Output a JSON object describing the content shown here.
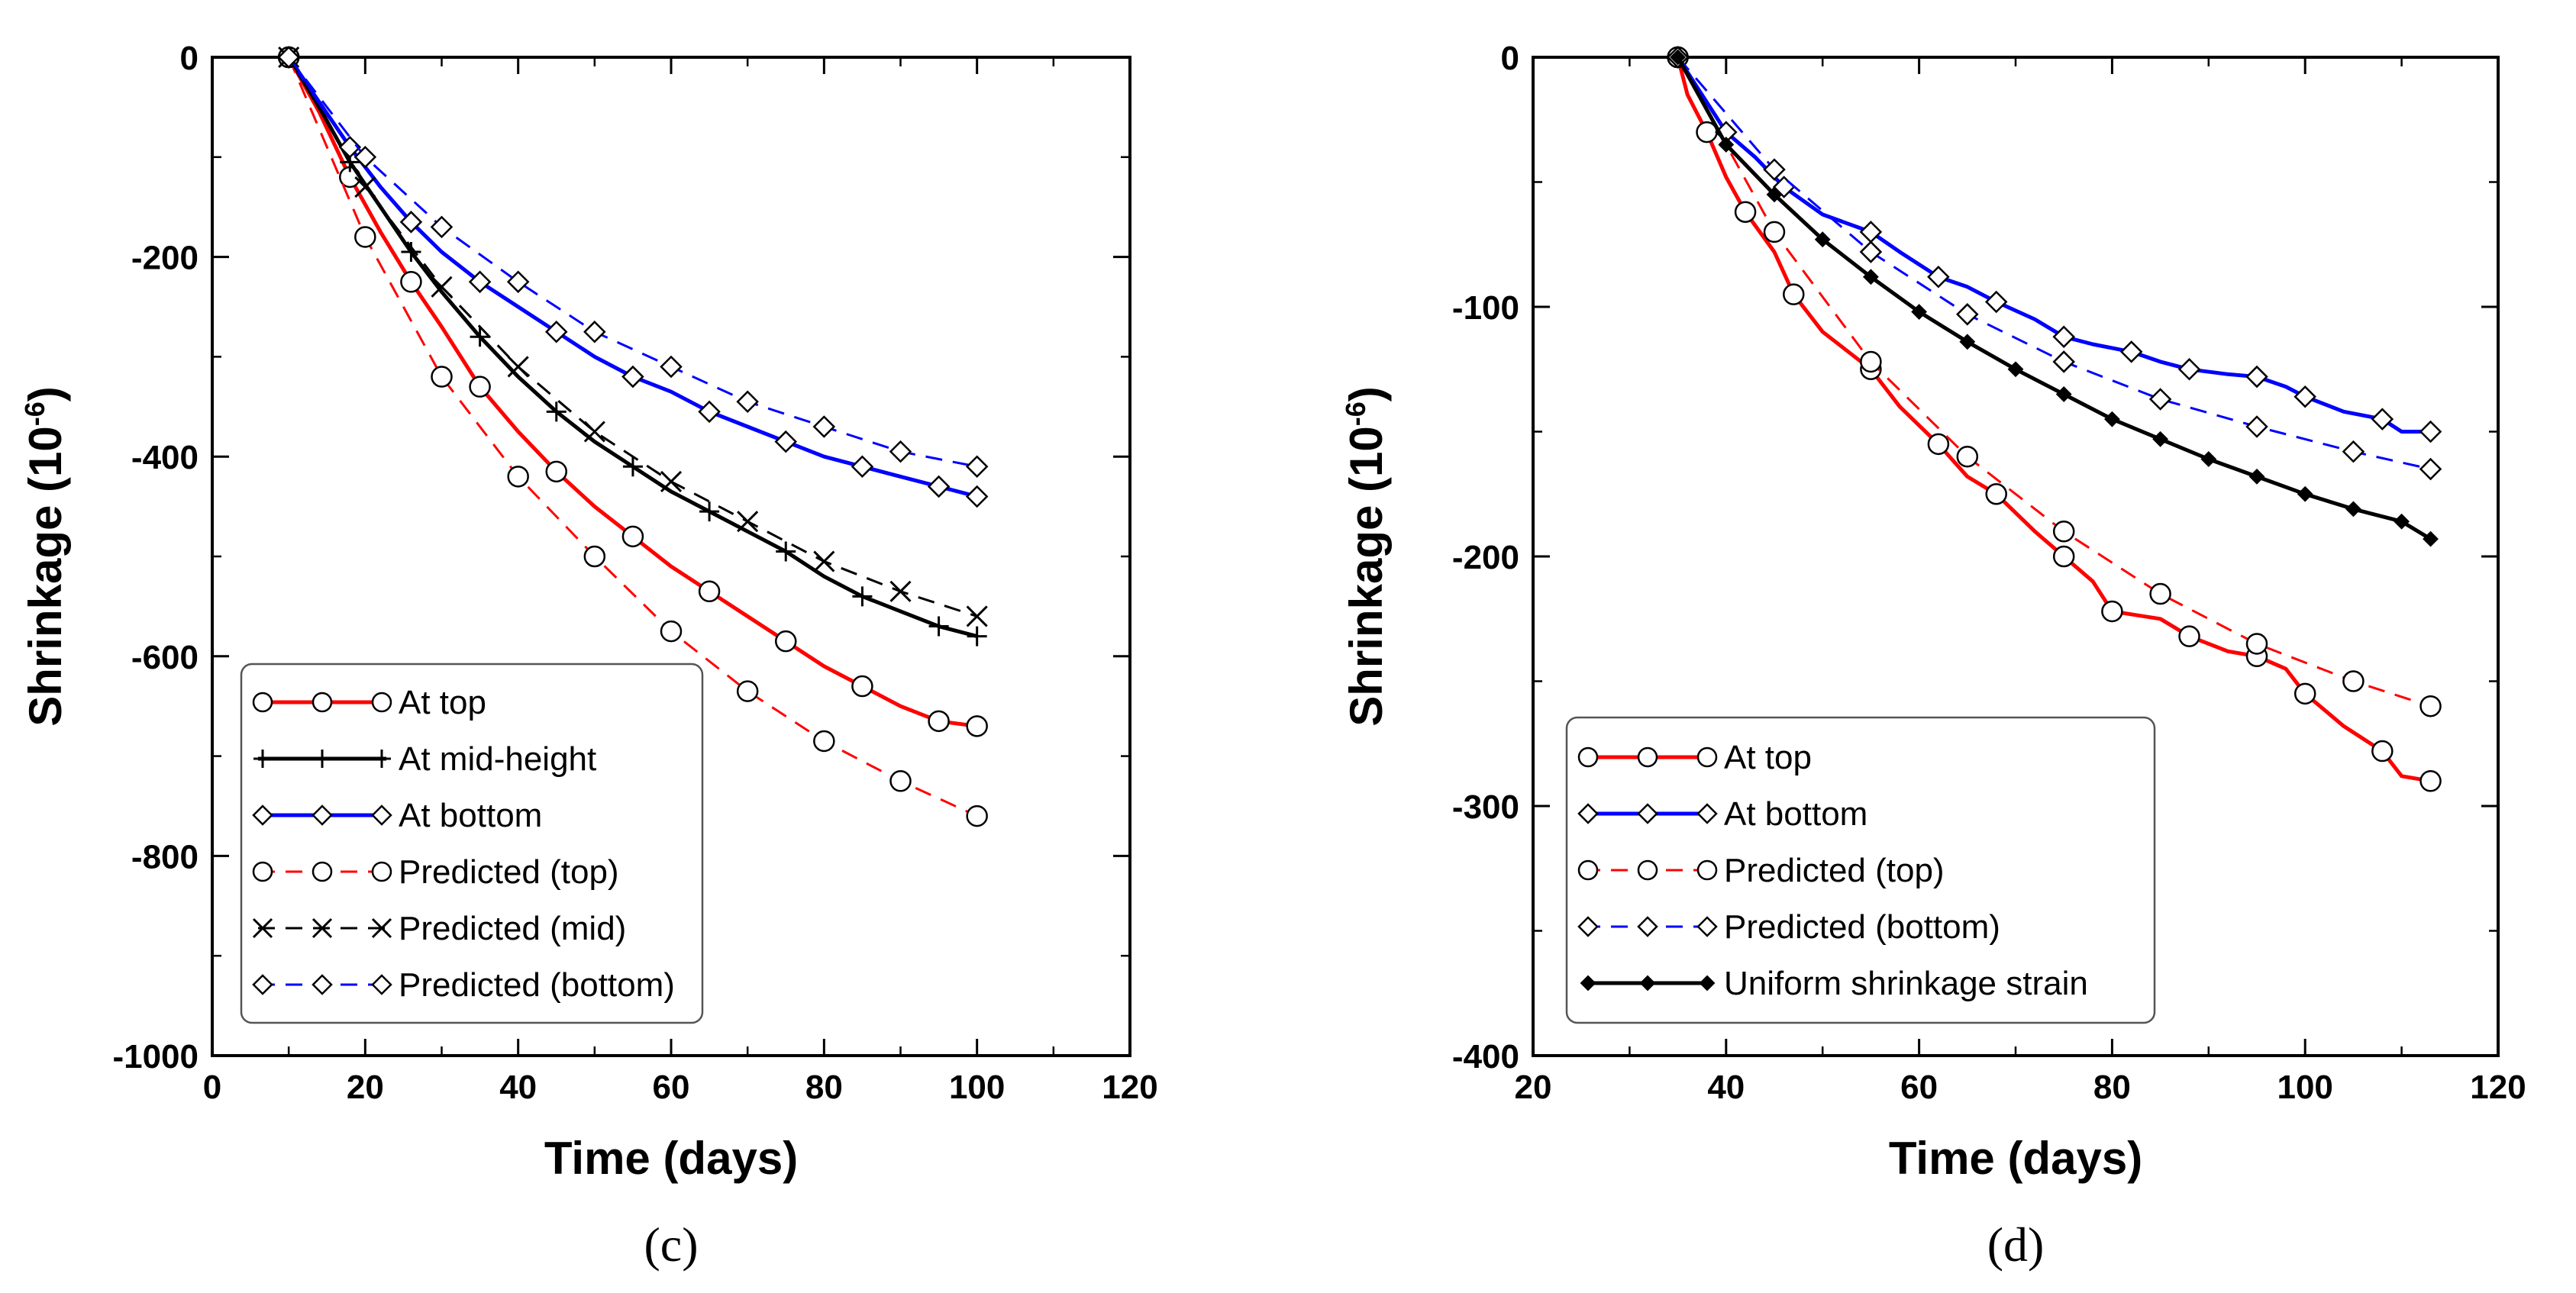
{
  "chart_data": [
    {
      "type": "line",
      "panel_label": "(c)",
      "xlabel": "Time (days)",
      "ylabel": "Shrinkage (10",
      "ylabel_sup": "-6",
      "ylabel_close": ")",
      "xlim": [
        0,
        120
      ],
      "ylim": [
        -1000,
        0
      ],
      "xticks": [
        0,
        20,
        40,
        60,
        80,
        100,
        120
      ],
      "yticks": [
        0,
        -200,
        -400,
        -600,
        -800,
        -1000
      ],
      "legend_position": "bottom-left",
      "series": [
        {
          "name": "At top",
          "color": "#ff0000",
          "style": "solid",
          "marker": "circle",
          "x": [
            10,
            14,
            18,
            22,
            26,
            30,
            35,
            40,
            45,
            50,
            55,
            60,
            65,
            70,
            75,
            80,
            85,
            90,
            95,
            100
          ],
          "values": [
            0,
            -55,
            -120,
            -175,
            -225,
            -270,
            -330,
            -375,
            -415,
            -450,
            -480,
            -510,
            -535,
            -560,
            -585,
            -610,
            -630,
            -650,
            -665,
            -670
          ]
        },
        {
          "name": "At mid-height",
          "color": "#000000",
          "style": "solid",
          "marker": "plus",
          "x": [
            10,
            14,
            18,
            22,
            26,
            30,
            35,
            40,
            45,
            50,
            55,
            60,
            65,
            70,
            75,
            80,
            85,
            90,
            95,
            100
          ],
          "values": [
            0,
            -50,
            -105,
            -150,
            -195,
            -235,
            -280,
            -320,
            -355,
            -385,
            -410,
            -435,
            -455,
            -475,
            -495,
            -520,
            -540,
            -555,
            -570,
            -580
          ]
        },
        {
          "name": "At bottom",
          "color": "#0000ff",
          "style": "solid",
          "marker": "diamond",
          "x": [
            10,
            14,
            18,
            22,
            26,
            30,
            35,
            40,
            45,
            50,
            55,
            60,
            65,
            70,
            75,
            80,
            85,
            90,
            95,
            100
          ],
          "values": [
            0,
            -45,
            -90,
            -130,
            -165,
            -195,
            -225,
            -250,
            -275,
            -300,
            -320,
            -335,
            -355,
            -370,
            -385,
            -400,
            -410,
            -420,
            -430,
            -440
          ]
        },
        {
          "name": "Predicted (top)",
          "color": "#ff0000",
          "style": "dashed",
          "marker": "circle",
          "x": [
            10,
            20,
            30,
            40,
            50,
            60,
            70,
            80,
            90,
            100
          ],
          "values": [
            0,
            -180,
            -320,
            -420,
            -500,
            -575,
            -635,
            -685,
            -725,
            -760
          ]
        },
        {
          "name": "Predicted (mid)",
          "color": "#000000",
          "style": "dashed",
          "marker": "x",
          "x": [
            10,
            20,
            30,
            40,
            50,
            60,
            70,
            80,
            90,
            100
          ],
          "values": [
            0,
            -130,
            -230,
            -310,
            -375,
            -425,
            -465,
            -505,
            -535,
            -560
          ]
        },
        {
          "name": "Predicted (bottom)",
          "color": "#0000ff",
          "style": "dashed",
          "marker": "diamond",
          "x": [
            10,
            20,
            30,
            40,
            50,
            60,
            70,
            80,
            90,
            100
          ],
          "values": [
            0,
            -100,
            -170,
            -225,
            -275,
            -310,
            -345,
            -370,
            -395,
            -410
          ]
        }
      ]
    },
    {
      "type": "line",
      "panel_label": "(d)",
      "xlabel": "Time (days)",
      "ylabel": "Shrinkage (10",
      "ylabel_sup": "-6",
      "ylabel_close": ")",
      "xlim": [
        20,
        120
      ],
      "ylim": [
        -400,
        0
      ],
      "xticks": [
        20,
        40,
        60,
        80,
        100,
        120
      ],
      "yticks": [
        0,
        -100,
        -200,
        -300,
        -400
      ],
      "legend_position": "bottom-left",
      "series": [
        {
          "name": "At top",
          "color": "#ff0000",
          "style": "solid",
          "marker": "circle",
          "x": [
            35,
            36,
            38,
            40,
            42,
            45,
            47,
            50,
            55,
            58,
            62,
            65,
            68,
            72,
            75,
            78,
            80,
            85,
            88,
            92,
            95,
            98,
            100,
            104,
            108,
            110,
            113
          ],
          "values": [
            0,
            -15,
            -30,
            -48,
            -62,
            -78,
            -95,
            -110,
            -125,
            -140,
            -155,
            -168,
            -175,
            -190,
            -200,
            -210,
            -222,
            -225,
            -232,
            -238,
            -240,
            -245,
            -255,
            -268,
            -278,
            -288,
            -290
          ]
        },
        {
          "name": "At bottom",
          "color": "#0000ff",
          "style": "solid",
          "marker": "diamond",
          "x": [
            35,
            38,
            40,
            43,
            46,
            50,
            55,
            58,
            62,
            65,
            68,
            72,
            75,
            78,
            82,
            85,
            88,
            92,
            95,
            98,
            100,
            104,
            108,
            110,
            113
          ],
          "values": [
            0,
            -18,
            -30,
            -40,
            -52,
            -63,
            -70,
            -78,
            -88,
            -92,
            -98,
            -105,
            -112,
            -115,
            -118,
            -122,
            -125,
            -127,
            -128,
            -132,
            -136,
            -142,
            -145,
            -150,
            -150
          ]
        },
        {
          "name": "Predicted (top)",
          "color": "#ff0000",
          "style": "dashed",
          "marker": "circle",
          "x": [
            35,
            45,
            55,
            65,
            75,
            85,
            95,
            105,
            113
          ],
          "values": [
            0,
            -70,
            -122,
            -160,
            -190,
            -215,
            -235,
            -250,
            -260
          ]
        },
        {
          "name": "Predicted (bottom)",
          "color": "#0000ff",
          "style": "dashed",
          "marker": "diamond",
          "x": [
            35,
            45,
            55,
            65,
            75,
            85,
            95,
            105,
            113
          ],
          "values": [
            0,
            -45,
            -78,
            -103,
            -122,
            -137,
            -148,
            -158,
            -165
          ]
        },
        {
          "name": "Uniform shrinkage strain",
          "color": "#000000",
          "style": "solid",
          "marker": "filled-diamond",
          "x": [
            35,
            40,
            45,
            50,
            55,
            60,
            65,
            70,
            75,
            80,
            85,
            90,
            95,
            100,
            105,
            110,
            113
          ],
          "values": [
            0,
            -35,
            -55,
            -73,
            -88,
            -102,
            -114,
            -125,
            -135,
            -145,
            -153,
            -161,
            -168,
            -175,
            -181,
            -186,
            -193
          ]
        }
      ]
    }
  ]
}
